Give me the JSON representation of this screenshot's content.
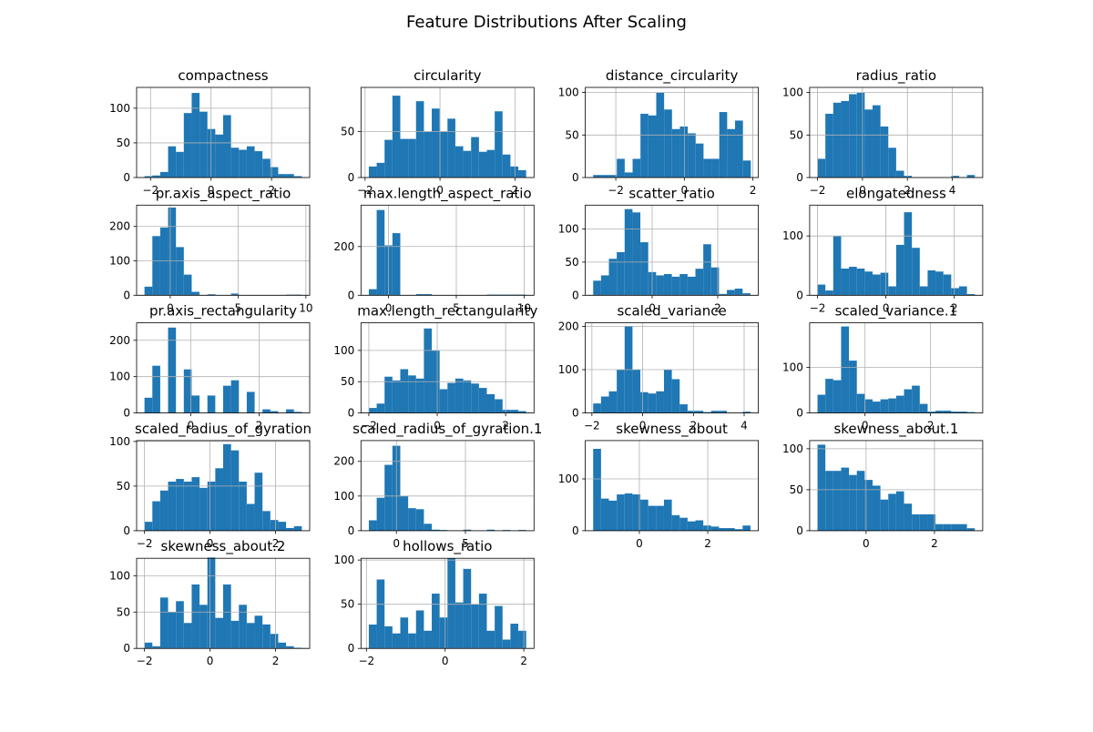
{
  "title": "Feature Distributions After Scaling",
  "chart_data": [
    {
      "type": "histogram",
      "title": "compactness",
      "color": "#1f77b4",
      "grid": true,
      "bins": [
        -2.2,
        -1.94,
        -1.68,
        -1.42,
        -1.16,
        -0.9,
        -0.64,
        -0.38,
        -0.12,
        0.14,
        0.4,
        0.66,
        0.92,
        1.18,
        1.44,
        1.7,
        1.96,
        2.22,
        2.48,
        2.74,
        3.0
      ],
      "values": [
        2,
        3,
        8,
        45,
        37,
        93,
        122,
        95,
        70,
        62,
        90,
        43,
        40,
        45,
        38,
        27,
        15,
        5,
        5,
        2
      ],
      "xlim": [
        -2.46,
        3.26
      ],
      "ylim": [
        0,
        130
      ],
      "xticks": [
        {
          "value": -2,
          "label": "−2"
        },
        0,
        2
      ],
      "yticks": [
        0,
        50,
        100
      ]
    },
    {
      "type": "histogram",
      "title": "circularity",
      "color": "#1f77b4",
      "grid": true,
      "bins": [
        -1.9,
        -1.69,
        -1.48,
        -1.27,
        -1.06,
        -0.85,
        -0.64,
        -0.43,
        -0.22,
        -0.01,
        0.2,
        0.41,
        0.62,
        0.83,
        1.04,
        1.25,
        1.46,
        1.67,
        1.88,
        2.09,
        2.3
      ],
      "values": [
        12,
        16,
        41,
        89,
        42,
        42,
        83,
        50,
        75,
        50,
        64,
        34,
        29,
        44,
        28,
        30,
        72,
        25,
        12,
        8
      ],
      "xlim": [
        -2.11,
        2.51
      ],
      "ylim": [
        0,
        98
      ],
      "xticks": [
        {
          "value": -2,
          "label": "−2"
        },
        0,
        2
      ],
      "yticks": [
        0,
        50
      ]
    },
    {
      "type": "histogram",
      "title": "distance_circularity",
      "color": "#1f77b4",
      "grid": true,
      "bins": [
        -2.66,
        -2.43,
        -2.2,
        -1.97,
        -1.74,
        -1.51,
        -1.28,
        -1.05,
        -0.82,
        -0.59,
        -0.36,
        -0.13,
        0.1,
        0.33,
        0.56,
        0.79,
        1.02,
        1.25,
        1.48,
        1.71,
        1.94
      ],
      "values": [
        3,
        3,
        3,
        22,
        6,
        22,
        75,
        73,
        100,
        80,
        57,
        60,
        52,
        40,
        22,
        22,
        77,
        57,
        67,
        20
      ],
      "xlim": [
        -2.89,
        2.16
      ],
      "ylim": [
        0,
        106
      ],
      "xticks": [
        {
          "value": -2,
          "label": "−2"
        },
        0,
        2
      ],
      "yticks": [
        0,
        50,
        100
      ]
    },
    {
      "type": "histogram",
      "title": "radius_ratio",
      "color": "#1f77b4",
      "grid": true,
      "bins": [
        -2.0,
        -1.65,
        -1.3,
        -0.95,
        -0.6,
        -0.25,
        0.1,
        0.45,
        0.8,
        1.15,
        1.5,
        1.85,
        2.2,
        2.55,
        2.9,
        3.25,
        3.6,
        3.95,
        4.3,
        4.65,
        5.0
      ],
      "values": [
        22,
        75,
        88,
        90,
        98,
        100,
        80,
        85,
        60,
        35,
        8,
        2,
        0,
        0,
        0,
        0,
        0,
        2,
        0,
        3
      ],
      "xlim": [
        -2.35,
        5.35
      ],
      "ylim": [
        0,
        106
      ],
      "xticks": [
        {
          "value": -2,
          "label": "−2"
        },
        0,
        2,
        4
      ],
      "yticks": [
        0,
        50,
        100
      ]
    },
    {
      "type": "histogram",
      "title": "pr.axis_aspect_ratio",
      "color": "#1f77b4",
      "grid": true,
      "bins": [
        -1.9,
        -1.32,
        -0.74,
        -0.16,
        0.42,
        1.0,
        1.58,
        2.16,
        2.74,
        3.32,
        3.9,
        4.48,
        5.06,
        5.64,
        6.22,
        6.8,
        7.38,
        7.96,
        8.54,
        9.12,
        9.7
      ],
      "values": [
        25,
        172,
        197,
        255,
        140,
        60,
        10,
        0,
        3,
        0,
        0,
        5,
        0,
        0,
        0,
        0,
        0,
        0,
        2,
        2
      ],
      "xlim": [
        -2.48,
        10.28
      ],
      "ylim": [
        0,
        262
      ],
      "xticks": [
        0,
        5,
        10
      ],
      "yticks": [
        0,
        100,
        200
      ]
    },
    {
      "type": "histogram",
      "title": "max.length_aspect_ratio",
      "color": "#1f77b4",
      "grid": true,
      "bins": [
        -1.45,
        -0.87,
        -0.29,
        0.29,
        0.87,
        1.45,
        2.03,
        2.61,
        3.19,
        3.77,
        4.35,
        4.93,
        5.51,
        6.09,
        6.67,
        7.25,
        7.83,
        8.41,
        8.99,
        9.57,
        10.15
      ],
      "values": [
        25,
        350,
        205,
        255,
        0,
        0,
        5,
        5,
        0,
        0,
        0,
        0,
        0,
        0,
        0,
        3,
        3,
        3,
        3,
        3
      ],
      "xlim": [
        -2.03,
        10.73
      ],
      "ylim": [
        0,
        370
      ],
      "xticks": [
        0,
        5,
        10
      ],
      "yticks": [
        0,
        200
      ]
    },
    {
      "type": "histogram",
      "title": "scatter_ratio",
      "color": "#1f77b4",
      "grid": true,
      "bins": [
        -1.8,
        -1.56,
        -1.32,
        -1.08,
        -0.84,
        -0.6,
        -0.36,
        -0.12,
        0.12,
        0.36,
        0.6,
        0.84,
        1.08,
        1.32,
        1.56,
        1.8,
        2.04,
        2.28,
        2.52,
        2.76,
        3.0
      ],
      "values": [
        22,
        30,
        55,
        65,
        130,
        125,
        80,
        35,
        30,
        32,
        28,
        32,
        28,
        40,
        77,
        42,
        2,
        8,
        10,
        3
      ],
      "xlim": [
        -2.04,
        3.24
      ],
      "ylim": [
        0,
        136
      ],
      "xticks": [
        0,
        2
      ],
      "yticks": [
        0,
        50,
        100
      ]
    },
    {
      "type": "histogram",
      "title": "elongatedness",
      "color": "#1f77b4",
      "grid": true,
      "bins": [
        -2.0,
        -1.77,
        -1.54,
        -1.31,
        -1.08,
        -0.85,
        -0.62,
        -0.39,
        -0.16,
        0.07,
        0.3,
        0.53,
        0.76,
        0.99,
        1.22,
        1.45,
        1.68,
        1.91,
        2.14,
        2.37,
        2.6
      ],
      "values": [
        18,
        8,
        100,
        45,
        48,
        45,
        40,
        35,
        38,
        15,
        85,
        140,
        80,
        15,
        42,
        40,
        35,
        12,
        15,
        2
      ],
      "xlim": [
        -2.23,
        2.83
      ],
      "ylim": [
        0,
        152
      ],
      "xticks": [
        {
          "value": -2,
          "label": "−2"
        },
        0,
        2
      ],
      "yticks": [
        0,
        100
      ]
    },
    {
      "type": "histogram",
      "title": "pr.axis_rectangularity",
      "color": "#1f77b4",
      "grid": true,
      "bins": [
        -1.35,
        -1.12,
        -0.89,
        -0.66,
        -0.43,
        -0.2,
        0.03,
        0.26,
        0.49,
        0.72,
        0.95,
        1.18,
        1.41,
        1.64,
        1.87,
        2.1,
        2.33,
        2.56,
        2.79,
        3.02,
        3.25
      ],
      "values": [
        42,
        130,
        0,
        235,
        0,
        120,
        48,
        0,
        48,
        0,
        75,
        90,
        0,
        58,
        0,
        10,
        5,
        0,
        10,
        3
      ],
      "xlim": [
        -1.58,
        3.48
      ],
      "ylim": [
        0,
        248
      ],
      "xticks": [
        0,
        2
      ],
      "yticks": [
        0,
        100,
        200
      ]
    },
    {
      "type": "histogram",
      "title": "max.length_rectangularity",
      "color": "#1f77b4",
      "grid": true,
      "bins": [
        -2.0,
        -1.77,
        -1.54,
        -1.31,
        -1.08,
        -0.85,
        -0.62,
        -0.39,
        -0.16,
        0.07,
        0.3,
        0.53,
        0.76,
        0.99,
        1.22,
        1.45,
        1.68,
        1.91,
        2.14,
        2.37,
        2.6
      ],
      "values": [
        8,
        15,
        58,
        52,
        70,
        60,
        55,
        135,
        100,
        38,
        48,
        55,
        52,
        47,
        40,
        30,
        22,
        5,
        5,
        3
      ],
      "xlim": [
        -2.23,
        2.83
      ],
      "ylim": [
        0,
        144
      ],
      "xticks": [
        {
          "value": -2,
          "label": "−2"
        },
        0,
        2
      ],
      "yticks": [
        0,
        50,
        100
      ]
    },
    {
      "type": "histogram",
      "title": "scaled_variance",
      "color": "#1f77b4",
      "grid": true,
      "bins": [
        -1.95,
        -1.64,
        -1.33,
        -1.02,
        -0.71,
        -0.4,
        -0.09,
        0.22,
        0.53,
        0.84,
        1.15,
        1.46,
        1.77,
        2.08,
        2.39,
        2.7,
        3.01,
        3.32,
        3.63,
        3.94,
        4.25
      ],
      "values": [
        22,
        38,
        50,
        100,
        200,
        100,
        48,
        45,
        50,
        100,
        78,
        20,
        5,
        5,
        2,
        5,
        5,
        0,
        0,
        3
      ],
      "xlim": [
        -2.26,
        4.56
      ],
      "ylim": [
        0,
        208
      ],
      "xticks": [
        {
          "value": -2,
          "label": "−2"
        },
        0,
        2,
        4
      ],
      "yticks": [
        0,
        100,
        200
      ]
    },
    {
      "type": "histogram",
      "title": "scaled_variance.1",
      "color": "#1f77b4",
      "grid": true,
      "bins": [
        -1.45,
        -1.21,
        -0.97,
        -0.73,
        -0.49,
        -0.25,
        -0.01,
        0.23,
        0.47,
        0.71,
        0.95,
        1.19,
        1.43,
        1.67,
        1.91,
        2.15,
        2.39,
        2.63,
        2.87,
        3.11,
        3.35
      ],
      "values": [
        40,
        75,
        72,
        190,
        115,
        42,
        30,
        25,
        30,
        32,
        38,
        52,
        60,
        20,
        3,
        5,
        5,
        3,
        3,
        2
      ],
      "xlim": [
        -1.69,
        3.59
      ],
      "ylim": [
        0,
        198
      ],
      "xticks": [
        0,
        2
      ],
      "yticks": [
        0,
        100
      ]
    },
    {
      "type": "histogram",
      "title": "scaled_radius_of_gyration",
      "color": "#1f77b4",
      "grid": true,
      "bins": [
        -2.0,
        -1.76,
        -1.52,
        -1.28,
        -1.04,
        -0.8,
        -0.56,
        -0.32,
        -0.08,
        0.16,
        0.4,
        0.64,
        0.88,
        1.12,
        1.36,
        1.6,
        1.84,
        2.08,
        2.32,
        2.56,
        2.8
      ],
      "values": [
        10,
        33,
        45,
        55,
        58,
        55,
        60,
        48,
        55,
        70,
        97,
        90,
        55,
        30,
        65,
        22,
        12,
        10,
        3,
        5
      ],
      "xlim": [
        -2.24,
        3.04
      ],
      "ylim": [
        0,
        101
      ],
      "xticks": [
        {
          "value": -2,
          "label": "−2"
        },
        0,
        2
      ],
      "yticks": [
        0,
        50,
        100
      ]
    },
    {
      "type": "histogram",
      "title": "scaled_radius_of_gyration.1",
      "color": "#1f77b4",
      "grid": true,
      "bins": [
        -2.0,
        -1.43,
        -0.86,
        -0.29,
        0.28,
        0.85,
        1.42,
        1.99,
        2.56,
        3.13,
        3.7,
        4.27,
        4.84,
        5.41,
        5.98,
        6.55,
        7.12,
        7.69,
        8.26,
        8.83,
        9.4
      ],
      "values": [
        30,
        95,
        190,
        245,
        100,
        65,
        62,
        20,
        3,
        2,
        0,
        0,
        3,
        0,
        0,
        3,
        0,
        2,
        0,
        2
      ],
      "xlim": [
        -2.57,
        9.97
      ],
      "ylim": [
        0,
        260
      ],
      "xticks": [
        0,
        5
      ],
      "yticks": [
        0,
        100,
        200
      ]
    },
    {
      "type": "histogram",
      "title": "skewness_about",
      "color": "#1f77b4",
      "grid": true,
      "bins": [
        -1.35,
        -1.12,
        -0.89,
        -0.66,
        -0.43,
        -0.2,
        0.03,
        0.26,
        0.49,
        0.72,
        0.95,
        1.18,
        1.41,
        1.64,
        1.87,
        2.1,
        2.33,
        2.56,
        2.79,
        3.02,
        3.25
      ],
      "values": [
        158,
        62,
        58,
        70,
        72,
        70,
        60,
        48,
        48,
        60,
        30,
        25,
        18,
        20,
        10,
        8,
        5,
        5,
        3,
        10
      ],
      "xlim": [
        -1.58,
        3.48
      ],
      "ylim": [
        0,
        174
      ],
      "xticks": [
        0,
        2
      ],
      "yticks": [
        0,
        100
      ]
    },
    {
      "type": "histogram",
      "title": "skewness_about.1",
      "color": "#1f77b4",
      "grid": true,
      "bins": [
        -1.42,
        -1.19,
        -0.96,
        -0.73,
        -0.5,
        -0.27,
        -0.04,
        0.19,
        0.42,
        0.65,
        0.88,
        1.11,
        1.34,
        1.57,
        1.8,
        2.03,
        2.26,
        2.49,
        2.72,
        2.95,
        3.18
      ],
      "values": [
        105,
        73,
        73,
        77,
        68,
        73,
        62,
        55,
        38,
        45,
        48,
        33,
        20,
        20,
        20,
        8,
        8,
        8,
        8,
        3
      ],
      "xlim": [
        -1.65,
        3.41
      ],
      "ylim": [
        0,
        110
      ],
      "xticks": [
        0,
        2
      ],
      "yticks": [
        0,
        50,
        100
      ]
    },
    {
      "type": "histogram",
      "title": "skewness_about.2",
      "color": "#1f77b4",
      "grid": true,
      "bins": [
        -2.0,
        -1.76,
        -1.52,
        -1.28,
        -1.04,
        -0.8,
        -0.56,
        -0.32,
        -0.08,
        0.16,
        0.4,
        0.64,
        0.88,
        1.12,
        1.36,
        1.6,
        1.84,
        2.08,
        2.32,
        2.56,
        2.8
      ],
      "values": [
        8,
        3,
        70,
        50,
        65,
        35,
        88,
        60,
        125,
        42,
        88,
        38,
        60,
        35,
        45,
        33,
        20,
        8,
        3,
        1
      ],
      "xlim": [
        -2.24,
        3.04
      ],
      "ylim": [
        0,
        124
      ],
      "xticks": [
        {
          "value": -2,
          "label": "−2"
        },
        0,
        2
      ],
      "yticks": [
        0,
        50,
        100
      ]
    },
    {
      "type": "histogram",
      "title": "hollows_ratio",
      "color": "#1f77b4",
      "grid": true,
      "bins": [
        -1.94,
        -1.74,
        -1.54,
        -1.34,
        -1.14,
        -0.94,
        -0.74,
        -0.54,
        -0.34,
        -0.14,
        0.06,
        0.26,
        0.46,
        0.66,
        0.86,
        1.06,
        1.26,
        1.46,
        1.66,
        1.86,
        2.06
      ],
      "values": [
        27,
        78,
        25,
        17,
        35,
        17,
        43,
        20,
        62,
        35,
        102,
        52,
        90,
        50,
        62,
        20,
        48,
        10,
        28,
        20
      ],
      "xlim": [
        -2.14,
        2.26
      ],
      "ylim": [
        0,
        102
      ],
      "xticks": [
        {
          "value": -2,
          "label": "−2"
        },
        0,
        2
      ],
      "yticks": [
        0,
        50,
        100
      ]
    }
  ]
}
